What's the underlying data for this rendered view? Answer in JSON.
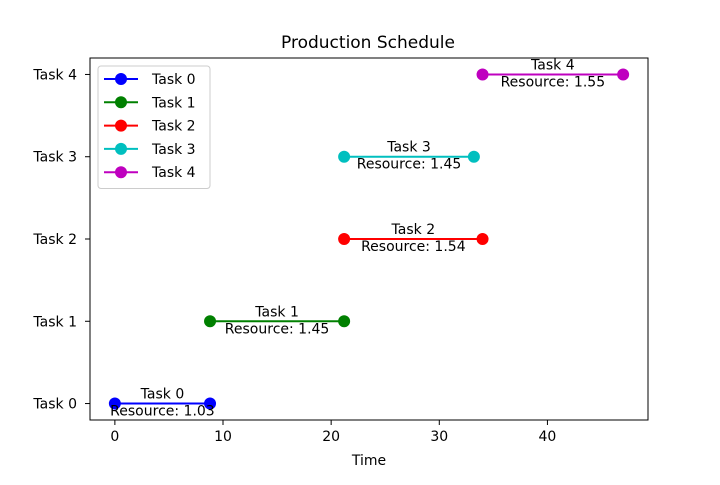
{
  "chart_data": {
    "type": "line",
    "title": "Production Schedule",
    "xlabel": "Time",
    "ylabel": "",
    "xlim": [
      -2.3,
      49.3
    ],
    "ylim": [
      -0.2,
      4.2
    ],
    "xticks": [
      0,
      10,
      20,
      30,
      40
    ],
    "yticks": [
      0,
      1,
      2,
      3,
      4
    ],
    "ytick_labels": [
      "Task 0",
      "Task 1",
      "Task 2",
      "Task 3",
      "Task 4"
    ],
    "grid": false,
    "legend_position": "top-left",
    "series": [
      {
        "name": "Task 0",
        "color": "#0000ff",
        "x": [
          0,
          8.8
        ],
        "y": [
          0,
          0
        ],
        "label": "Task 0",
        "resource": "Resource: 1.03"
      },
      {
        "name": "Task 1",
        "color": "#008000",
        "x": [
          8.8,
          21.2
        ],
        "y": [
          1,
          1
        ],
        "label": "Task 1",
        "resource": "Resource: 1.45"
      },
      {
        "name": "Task 2",
        "color": "#ff0000",
        "x": [
          21.2,
          34.0
        ],
        "y": [
          2,
          2
        ],
        "label": "Task 2",
        "resource": "Resource: 1.54"
      },
      {
        "name": "Task 3",
        "color": "#00bfbf",
        "x": [
          21.2,
          33.2
        ],
        "y": [
          3,
          3
        ],
        "label": "Task 3",
        "resource": "Resource: 1.45"
      },
      {
        "name": "Task 4",
        "color": "#bf00bf",
        "x": [
          34.0,
          47.0
        ],
        "y": [
          4,
          4
        ],
        "label": "Task 4",
        "resource": "Resource: 1.55"
      }
    ]
  }
}
